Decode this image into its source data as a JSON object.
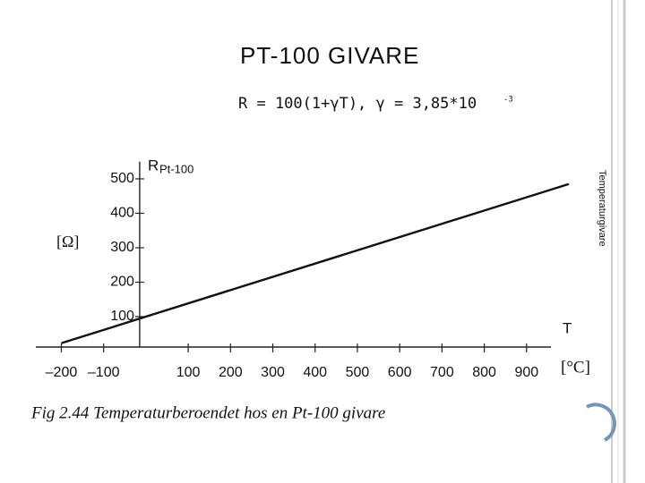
{
  "slide": {
    "title": "PT-100 GIVARE",
    "formula": "R = 100(1+γT), γ = 3,85*10",
    "formula_exponent": "-3",
    "side_label": "Temperaturgivare"
  },
  "chart_data": {
    "type": "line",
    "y_label": "R",
    "y_label_subscript": "Pt-100",
    "y_unit": "[Ω]",
    "x_label": "T",
    "x_unit": "[°C]",
    "caption": "Fig 2.44  Temperaturberoendet hos en Pt-100 givare",
    "x": [
      -200,
      1000
    ],
    "series": [
      {
        "name": "R",
        "color": "#111111",
        "values": [
          23,
          485
        ]
      }
    ],
    "xlim": [
      -240,
      1000
    ],
    "xticks": [
      {
        "value": -200,
        "label": "–200"
      },
      {
        "value": -100,
        "label": "–100"
      },
      100,
      200,
      300,
      400,
      500,
      600,
      700,
      800,
      900
    ],
    "ylim": [
      0,
      550
    ],
    "yticks": [
      100,
      200,
      300,
      400,
      500
    ]
  }
}
